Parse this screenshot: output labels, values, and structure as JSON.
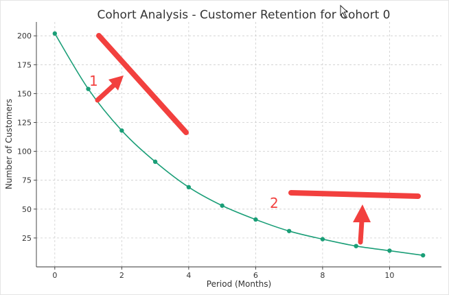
{
  "chart_data": {
    "type": "line",
    "title": "Cohort Analysis - Customer Retention for Cohort 0",
    "xlabel": "Period (Months)",
    "ylabel": "Number of Customers",
    "x": [
      0,
      1,
      2,
      3,
      4,
      5,
      6,
      7,
      8,
      9,
      10,
      11
    ],
    "series": [
      {
        "values": [
          202,
          154,
          118,
          91,
          69,
          53,
          41,
          31,
          24,
          18,
          14,
          10
        ]
      }
    ],
    "xticks": [
      0,
      2,
      4,
      6,
      8,
      10
    ],
    "xtick_labels": [
      "0",
      "2",
      "4",
      "6",
      "8",
      "10"
    ],
    "yticks": [
      25,
      50,
      75,
      100,
      125,
      150,
      175,
      200
    ],
    "ytick_labels": [
      "25",
      "50",
      "75",
      "100",
      "125",
      "150",
      "175",
      "200"
    ],
    "xlim": [
      -0.55,
      11.55
    ],
    "ylim": [
      0,
      212
    ],
    "grid": true,
    "annotations": [
      {
        "text": "1"
      },
      {
        "text": "2"
      }
    ]
  },
  "colors": {
    "series": "#1a9e77",
    "annotation": "#f2403e",
    "axis": "#333333",
    "grid": "#cccccc"
  },
  "icons": {
    "cursor": "mouse-pointer-icon"
  }
}
